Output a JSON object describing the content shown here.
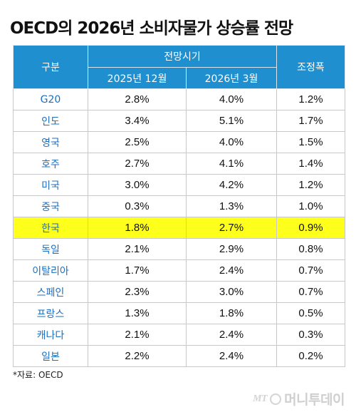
{
  "title": "OECD의 2026년 소비자물가 상승률 전망",
  "header": {
    "col1": "구분",
    "group": "전망시기",
    "sub1": "2025년 12월",
    "sub2": "2026년 3월",
    "col4": "조정폭"
  },
  "rows": [
    {
      "name": "G20",
      "a": "2.8%",
      "b": "4.0%",
      "c": "1.2%"
    },
    {
      "name": "인도",
      "a": "3.4%",
      "b": "5.1%",
      "c": "1.7%"
    },
    {
      "name": "영국",
      "a": "2.5%",
      "b": "4.0%",
      "c": "1.5%"
    },
    {
      "name": "호주",
      "a": "2.7%",
      "b": "4.1%",
      "c": "1.4%"
    },
    {
      "name": "미국",
      "a": "3.0%",
      "b": "4.2%",
      "c": "1.2%"
    },
    {
      "name": "중국",
      "a": "0.3%",
      "b": "1.3%",
      "c": "1.0%"
    },
    {
      "name": "한국",
      "a": "1.8%",
      "b": "2.7%",
      "c": "0.9%"
    },
    {
      "name": "독일",
      "a": "2.1%",
      "b": "2.9%",
      "c": "0.8%"
    },
    {
      "name": "이탈리아",
      "a": "1.7%",
      "b": "2.4%",
      "c": "0.7%"
    },
    {
      "name": "스페인",
      "a": "2.3%",
      "b": "3.0%",
      "c": "0.7%"
    },
    {
      "name": "프랑스",
      "a": "1.3%",
      "b": "1.8%",
      "c": "0.5%"
    },
    {
      "name": "캐나다",
      "a": "2.1%",
      "b": "2.4%",
      "c": "0.3%"
    },
    {
      "name": "일본",
      "a": "2.2%",
      "b": "2.4%",
      "c": "0.2%"
    }
  ],
  "highlight_color": "#ffff1c",
  "header_color": "#1f8fd0",
  "source": "*자료: OECD",
  "watermark": {
    "logo": "MT",
    "text": "머니투데이"
  }
}
